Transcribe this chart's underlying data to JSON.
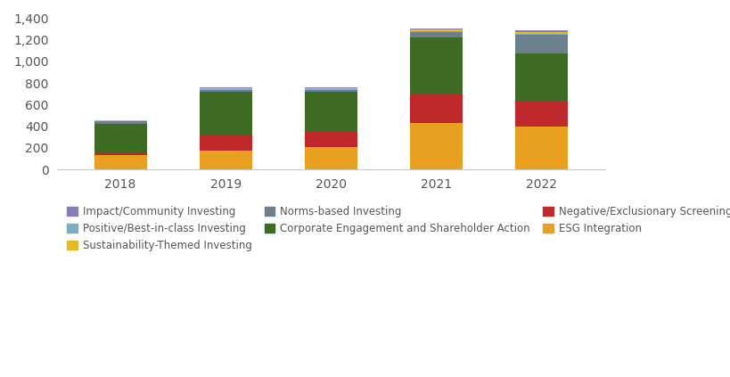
{
  "years": [
    "2018",
    "2019",
    "2020",
    "2021",
    "2022"
  ],
  "categories": [
    "ESG Integration",
    "Negative/Exclusionary Screening",
    "Corporate Engagement and Shareholder Action",
    "Norms-based Investing",
    "Positive/Best-in-class Investing",
    "Sustainability-Themed Investing",
    "Impact/Community Investing"
  ],
  "colors": [
    "#E8A020",
    "#C0292B",
    "#3D6B23",
    "#6B7F8C",
    "#7AAFBF",
    "#E8B820",
    "#8B7BB8"
  ],
  "values": {
    "ESG Integration": [
      130,
      178,
      210,
      430,
      400
    ],
    "Negative/Exclusionary Screening": [
      18,
      140,
      140,
      262,
      235
    ],
    "Corporate Engagement and Shareholder Action": [
      278,
      400,
      368,
      530,
      440
    ],
    "Norms-based Investing": [
      20,
      18,
      18,
      48,
      170
    ],
    "Positive/Best-in-class Investing": [
      5,
      8,
      5,
      10,
      10
    ],
    "Sustainability-Themed Investing": [
      3,
      8,
      15,
      15,
      20
    ],
    "Impact/Community Investing": [
      2,
      5,
      5,
      10,
      12
    ]
  },
  "ylim": [
    0,
    1400
  ],
  "yticks": [
    0,
    200,
    400,
    600,
    800,
    1000,
    1200,
    1400
  ],
  "background_color": "#FFFFFF",
  "legend_fontsize": 8.5,
  "axis_fontsize": 10,
  "bar_width": 0.5,
  "legend_order": [
    6,
    4,
    5,
    3,
    2,
    1,
    0
  ],
  "legend_ncol": 3,
  "legend_rows": [
    [
      "Impact/Community Investing",
      "Positive/Best-in-class Investing",
      "Sustainability-Themed Investing"
    ],
    [
      "Norms-based Investing",
      "Corporate Engagement and Shareholder Action"
    ],
    [
      "Negative/Exclusionary Screening",
      "ESG Integration"
    ]
  ]
}
